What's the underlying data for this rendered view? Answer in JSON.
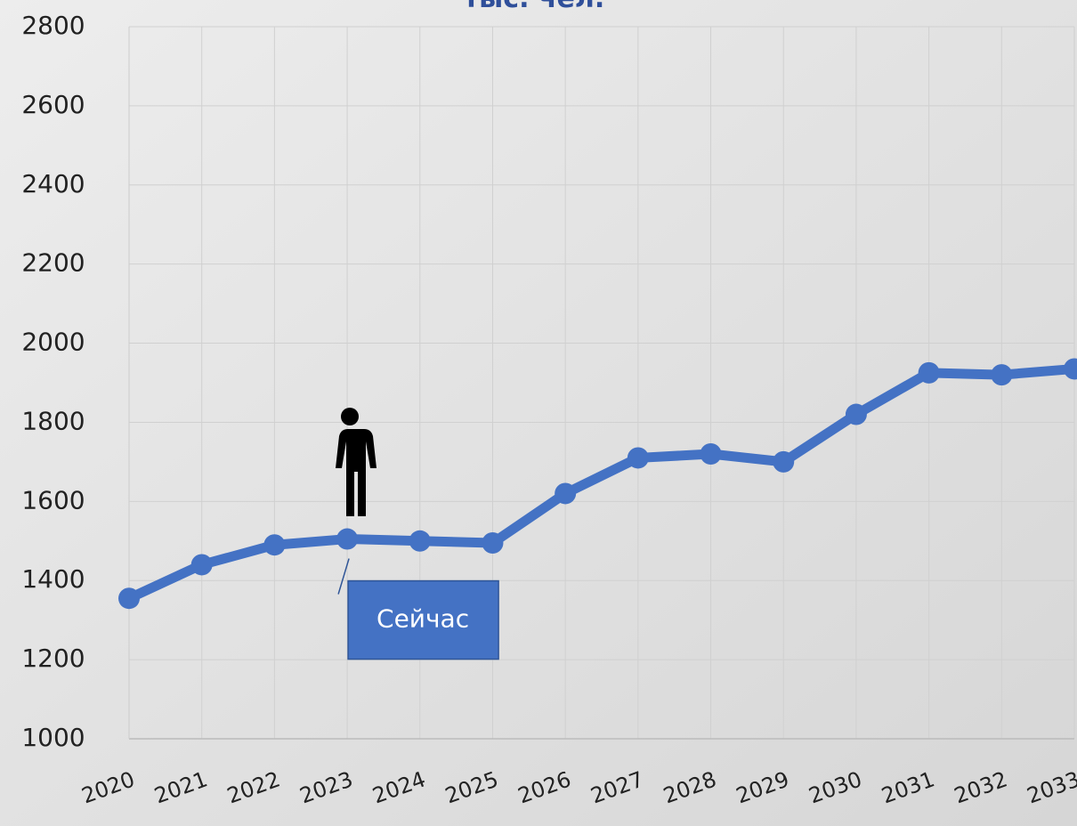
{
  "chart_data": {
    "type": "line",
    "title": "тыс. чел.",
    "categories": [
      "2020",
      "2021",
      "2022",
      "2023",
      "2024",
      "2025",
      "2026",
      "2027",
      "2028",
      "2029",
      "2030",
      "2031",
      "2032",
      "2033"
    ],
    "series": [
      {
        "name": "тыс. чел.",
        "color": "#4472c4",
        "values": [
          1355,
          1440,
          1490,
          1505,
          1500,
          1495,
          1620,
          1710,
          1720,
          1700,
          1820,
          1925,
          1920,
          1935
        ]
      }
    ],
    "ylim": [
      1000,
      2800
    ],
    "yticks": [
      1000,
      1200,
      1400,
      1600,
      1800,
      2000,
      2200,
      2400,
      2600,
      2800
    ],
    "grid": true,
    "annotation": {
      "text": "Сейчас",
      "category": "2023"
    }
  }
}
